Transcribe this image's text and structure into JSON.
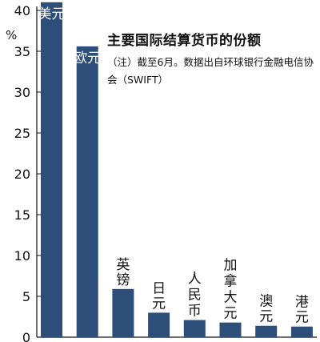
{
  "chart_data": {
    "type": "bar",
    "title": "主要国际结算货币的份额",
    "note": "（注）截至6月。数据出自环球银行金融电信协会（SWIFT）",
    "ylabel": "%",
    "ylim": [
      0,
      40
    ],
    "yticks": [
      0,
      5,
      10,
      15,
      20,
      25,
      30,
      35,
      40
    ],
    "grid": false,
    "categories": [
      "美元",
      "欧元",
      "英镑",
      "日元",
      "人民币",
      "加拿大元",
      "澳元",
      "港元"
    ],
    "values": [
      41.0,
      35.6,
      5.9,
      3.0,
      2.1,
      1.8,
      1.4,
      1.3
    ],
    "colors": {
      "bar": "#2e4e7a",
      "text": "#111111",
      "label_inside": "#ffffff"
    }
  }
}
